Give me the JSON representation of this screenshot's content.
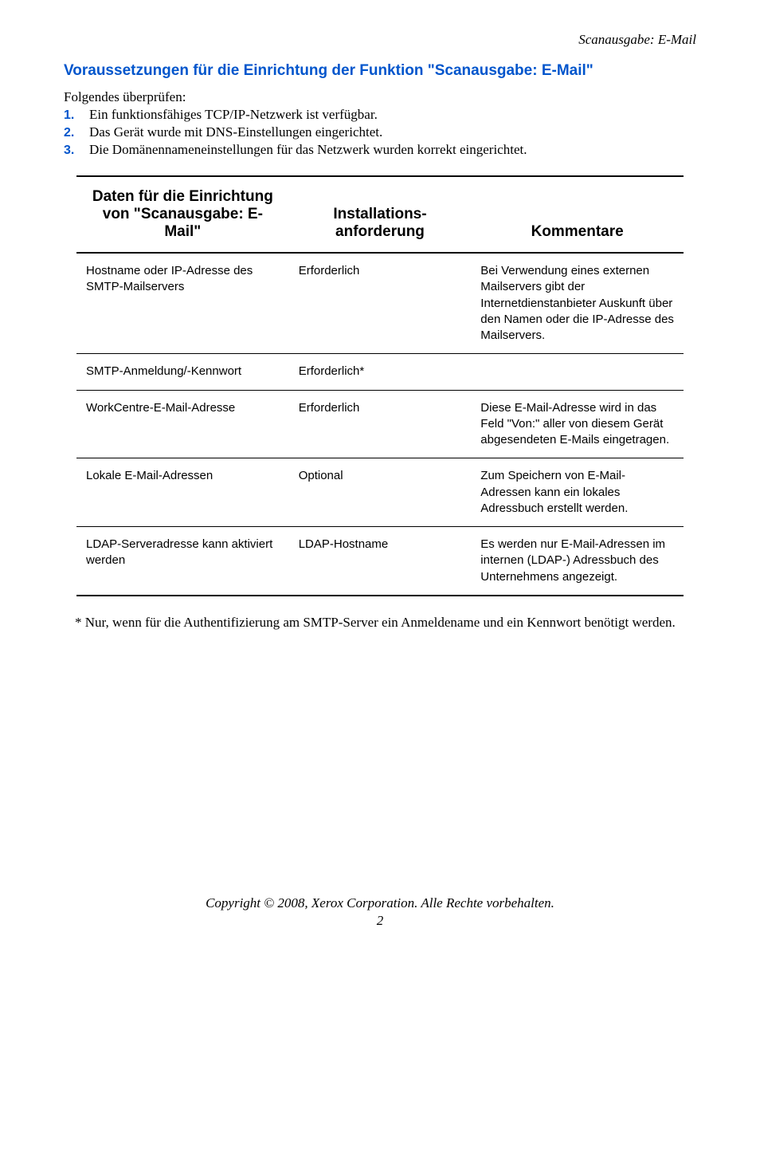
{
  "header": {
    "breadcrumb": "Scanausgabe: E-Mail"
  },
  "section": {
    "title": "Voraussetzungen für die Einrichtung der Funktion \"Scanausgabe: E-Mail\"",
    "intro": "Folgendes überprüfen:",
    "items": [
      {
        "num": "1.",
        "text": "Ein funktionsfähiges TCP/IP-Netzwerk ist verfügbar."
      },
      {
        "num": "2.",
        "text": "Das Gerät wurde mit DNS-Einstellungen eingerichtet."
      },
      {
        "num": "3.",
        "text": "Die Domänennameneinstellungen für das Netzwerk wurden korrekt eingerichtet."
      }
    ]
  },
  "table": {
    "columns": [
      "Daten für die Einrichtung von \"Scanausgabe: E-Mail\"",
      "Installations-anforderung",
      "Kommentare"
    ],
    "rows": [
      {
        "c1": "Hostname oder IP-Adresse des SMTP-Mailservers",
        "c2": "Erforderlich",
        "c3": "Bei Verwendung eines externen Mailservers gibt der Internetdienstanbieter Auskunft über den Namen oder die IP-Adresse des Mailservers."
      },
      {
        "c1": "SMTP-Anmeldung/-Kennwort",
        "c2": "Erforderlich*",
        "c3": ""
      },
      {
        "c1": "WorkCentre-E-Mail-Adresse",
        "c2": "Erforderlich",
        "c3": "Diese E-Mail-Adresse wird in das Feld \"Von:\" aller von diesem Gerät abgesendeten E-Mails eingetragen."
      },
      {
        "c1": "Lokale E-Mail-Adressen",
        "c2": "Optional",
        "c3": "Zum Speichern von E-Mail-Adressen kann ein lokales Adressbuch erstellt werden."
      },
      {
        "c1": "LDAP-Serveradresse kann aktiviert werden",
        "c2": "LDAP-Hostname",
        "c3": "Es werden nur E-Mail-Adressen im internen (LDAP-) Adressbuch des Unternehmens angezeigt."
      }
    ]
  },
  "footnote": "* Nur, wenn für die Authentifizierung am SMTP-Server ein Anmeldename und ein Kennwort benötigt werden.",
  "footer": {
    "copyright": "Copyright © 2008, Xerox Corporation. Alle Rechte vorbehalten.",
    "page": "2"
  },
  "colors": {
    "link_blue": "#0055cc",
    "text_black": "#000000",
    "background": "#ffffff"
  }
}
